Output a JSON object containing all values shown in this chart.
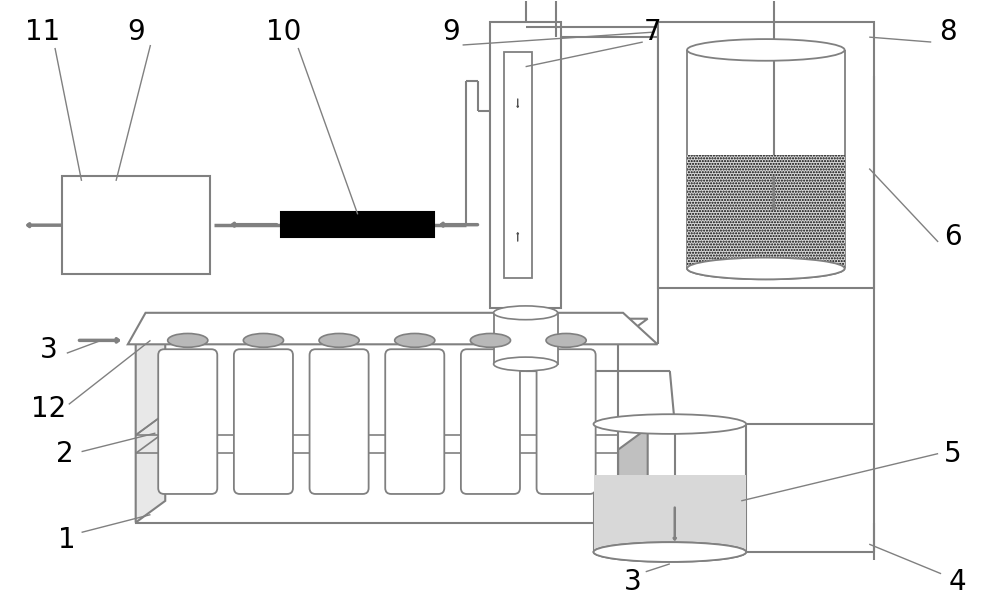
{
  "bg": "#ffffff",
  "gc": "#808080",
  "dc": "#505050",
  "figsize": [
    10.0,
    5.98
  ],
  "dpi": 100
}
